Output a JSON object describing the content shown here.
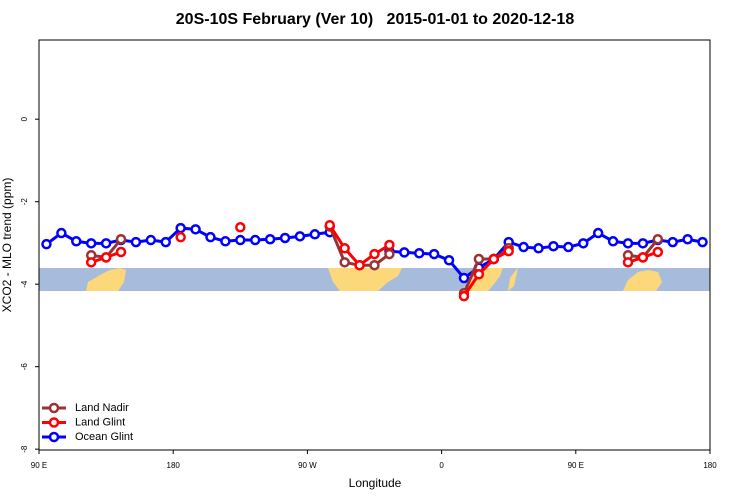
{
  "chart_data": {
    "type": "line",
    "title": "20S-10S February (Ver 10)   2015-01-01 to 2020-12-18",
    "x_label": "Longitude",
    "y_label": "XCO2 - MLO trend (ppm)",
    "x": [
      95,
      105,
      115,
      125,
      135,
      145,
      155,
      165,
      175,
      185,
      195,
      205,
      215,
      225,
      235,
      245,
      255,
      265,
      275,
      285,
      295,
      305,
      315,
      325,
      335,
      345,
      355,
      365,
      375,
      385,
      395,
      405,
      415,
      425,
      435,
      445,
      455,
      465,
      475,
      485,
      495,
      505,
      515,
      525,
      535
    ],
    "series": [
      {
        "name": "Land Nadir",
        "color": "#993333",
        "values": [
          null,
          null,
          null,
          -3.3,
          -3.35,
          -2.91,
          null,
          null,
          null,
          null,
          null,
          null,
          null,
          null,
          null,
          null,
          null,
          null,
          null,
          -2.6,
          -3.47,
          -3.54,
          -3.54,
          -3.27,
          null,
          null,
          null,
          null,
          -4.22,
          -3.39,
          -3.39,
          -3.13,
          null,
          null,
          null,
          null,
          null,
          null,
          null,
          -3.3,
          -3.35,
          -2.91,
          null,
          null,
          null
        ]
      },
      {
        "name": "Land Glint",
        "color": "#ff0000",
        "values": [
          null,
          null,
          null,
          -3.47,
          -3.35,
          -3.22,
          null,
          null,
          null,
          -2.86,
          null,
          null,
          null,
          -2.62,
          null,
          null,
          null,
          null,
          null,
          -2.57,
          -3.13,
          -3.54,
          -3.27,
          -3.05,
          null,
          null,
          null,
          null,
          -4.29,
          -3.76,
          -3.39,
          -3.2,
          null,
          null,
          null,
          null,
          null,
          null,
          null,
          -3.47,
          -3.35,
          -3.22,
          null,
          null,
          null
        ]
      },
      {
        "name": "Ocean Glint",
        "color": "#0000ff",
        "values": [
          -3.03,
          -2.76,
          -2.96,
          -3.01,
          -3.01,
          -2.93,
          -2.98,
          -2.93,
          -2.98,
          -2.64,
          -2.67,
          -2.86,
          -2.96,
          -2.93,
          -2.93,
          -2.91,
          -2.88,
          -2.84,
          -2.79,
          -2.74,
          null,
          null,
          null,
          -3.2,
          -3.23,
          -3.25,
          -3.27,
          -3.42,
          -3.85,
          -3.6,
          -3.39,
          -2.98,
          -3.1,
          -3.13,
          -3.08,
          -3.1,
          -3.01,
          -2.76,
          -2.96,
          -3.01,
          -3.01,
          -2.93,
          -2.98,
          -2.91,
          -2.98
        ]
      }
    ],
    "xlim": [
      90,
      540
    ],
    "xticks": [
      {
        "value": 90,
        "label": "90 E"
      },
      180,
      {
        "value": 270,
        "label": "90 W"
      },
      {
        "value": 360,
        "label": "0"
      },
      {
        "value": 450,
        "label": "90 E"
      },
      {
        "value": 540,
        "label": "180"
      }
    ],
    "ylim": [
      -8.02,
      1.92
    ],
    "yticks": [
      0,
      -2,
      -4,
      -6,
      -8
    ],
    "legend": "bottom-left"
  }
}
